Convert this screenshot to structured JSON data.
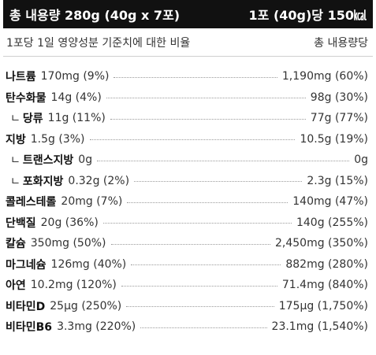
{
  "header": {
    "left": "총 내용량 280g (40g x 7포)",
    "right": "1포 (40g)당 150㎉"
  },
  "subheader": {
    "left": "1포당 1일 영양성분 기준치에 대한 비율",
    "right": "총 내용량당"
  },
  "rows": [
    {
      "name": "나트륨",
      "amount": "170mg (9%)",
      "total": "1,190mg (60%)",
      "indent": false
    },
    {
      "name": "탄수화물",
      "amount": "14g (4%)",
      "total": "98g (30%)",
      "indent": false
    },
    {
      "name": "당류",
      "amount": "11g (11%)",
      "total": "77g (77%)",
      "indent": true
    },
    {
      "name": "지방",
      "amount": "1.5g (3%)",
      "total": "10.5g (19%)",
      "indent": false
    },
    {
      "name": "트랜스지방",
      "amount": "0g",
      "total": "0g",
      "indent": true
    },
    {
      "name": "포화지방",
      "amount": "0.32g (2%)",
      "total": "2.3g (15%)",
      "indent": true
    },
    {
      "name": "콜레스테롤",
      "amount": "20mg (7%)",
      "total": "140mg (47%)",
      "indent": false
    },
    {
      "name": "단백질",
      "amount": "20g (36%)",
      "total": "140g (255%)",
      "indent": false
    },
    {
      "name": "칼슘",
      "amount": "350mg (50%)",
      "total": "2,450mg (350%)",
      "indent": false
    },
    {
      "name": "마그네슘",
      "amount": "126mg (40%)",
      "total": "882mg (280%)",
      "indent": false
    },
    {
      "name": "아연",
      "amount": "10.2mg (120%)",
      "total": "71.4mg (840%)",
      "indent": false
    },
    {
      "name": "비타민D",
      "amount": "25μg (250%)",
      "total": "175μg (1,750%)",
      "indent": false
    },
    {
      "name": "비타민B6",
      "amount": "3.3mg (220%)",
      "total": "23.1mg (1,540%)",
      "indent": false
    }
  ]
}
